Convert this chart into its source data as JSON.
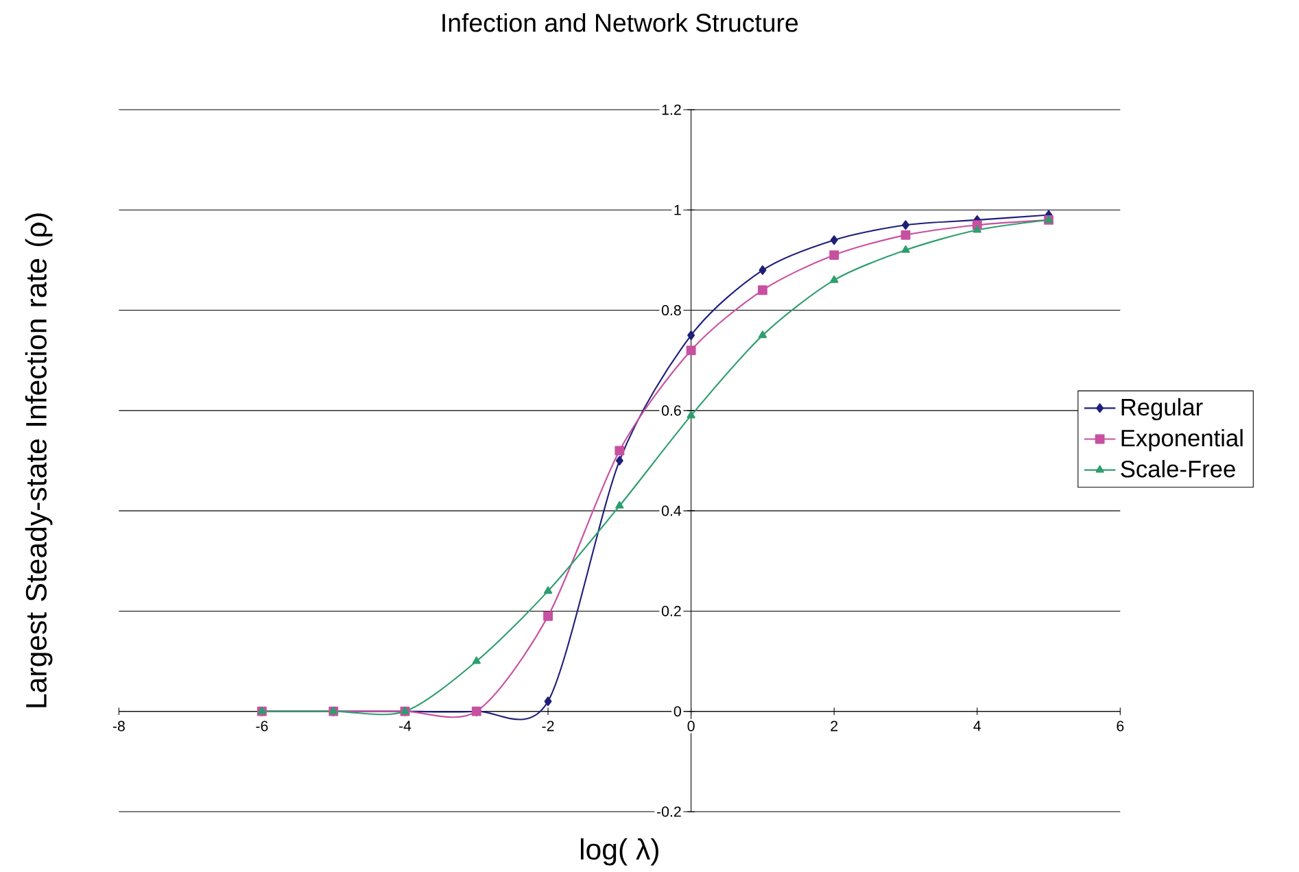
{
  "chart_data": {
    "type": "line",
    "title": "Infection and Network Structure",
    "xlabel": "log( λ)",
    "ylabel": "Largest Steady-state Infection rate (ρ)",
    "x": [
      -6,
      -5,
      -4,
      -3,
      -2,
      -1,
      0,
      1,
      2,
      3,
      4,
      5
    ],
    "series": [
      {
        "name": "Regular",
        "color": "#1f1f7a",
        "marker": "diamond",
        "values": [
          0,
          0,
          0,
          0,
          0.02,
          0.5,
          0.75,
          0.88,
          0.94,
          0.97,
          0.98,
          0.99
        ]
      },
      {
        "name": "Exponential",
        "color": "#c850a0",
        "marker": "square",
        "values": [
          0,
          0,
          0,
          0,
          0.19,
          0.52,
          0.72,
          0.84,
          0.91,
          0.95,
          0.97,
          0.98
        ]
      },
      {
        "name": "Scale-Free",
        "color": "#2e9e6e",
        "marker": "triangle",
        "values": [
          0,
          0,
          0,
          0.1,
          0.24,
          0.41,
          0.59,
          0.75,
          0.86,
          0.92,
          0.96,
          0.98
        ]
      }
    ],
    "xlim": [
      -8,
      6
    ],
    "xticks": [
      -8,
      -6,
      -4,
      -2,
      0,
      2,
      4,
      6
    ],
    "ylim": [
      -0.2,
      1.2
    ],
    "yticks": [
      -0.2,
      0,
      0.2,
      0.4,
      0.6,
      0.8,
      1,
      1.2
    ],
    "grid": "y",
    "legend": "right",
    "line_style": "solid"
  }
}
